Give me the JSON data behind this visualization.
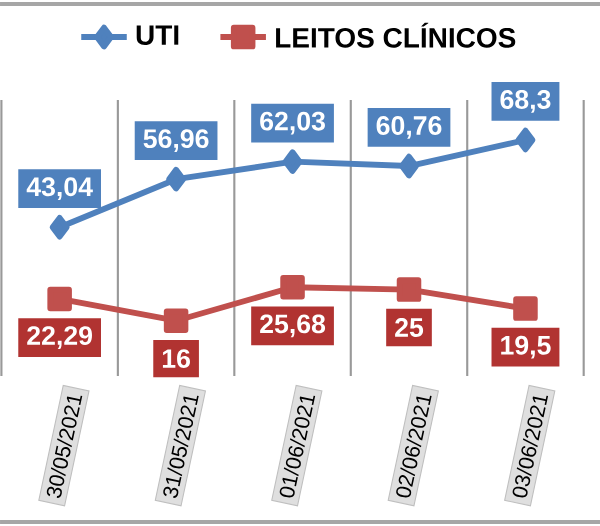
{
  "chart_data": {
    "type": "line",
    "categories": [
      "30/05/2021",
      "31/05/2021",
      "01/06/2021",
      "02/06/2021",
      "03/06/2021"
    ],
    "series": [
      {
        "name": "UTI",
        "color": "#4f81bd",
        "marker": "diamond",
        "values": [
          43.04,
          56.96,
          62.03,
          60.76,
          68.3
        ],
        "value_labels": [
          "43,04",
          "56,96",
          "62,03",
          "60,76",
          "68,3"
        ]
      },
      {
        "name": "LEITOS CLÍNICOS",
        "color": "#c0504d",
        "marker": "square",
        "values": [
          22.29,
          16,
          25.68,
          25,
          19.5
        ],
        "value_labels": [
          "22,29",
          "16",
          "25,68",
          "25",
          "19,5"
        ]
      }
    ],
    "grid": "x",
    "legend": "top"
  }
}
